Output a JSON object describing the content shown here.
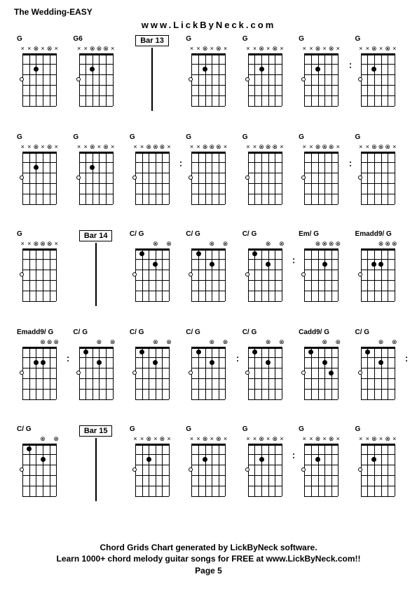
{
  "title": "The Wedding-EASY",
  "subtitle": "www.LickByNeck.com",
  "footer_line1": "Chord Grids Chart generated by LickByNeck software.",
  "footer_line2": "Learn 1000+ chord melody guitar songs for FREE at www.LickByNeck.com!!",
  "footer_page": "Page 5",
  "layout": {
    "rows": 5,
    "cols": 7,
    "diagram_width": 52,
    "diagram_height": 92,
    "num_frets": 5,
    "num_strings": 6
  },
  "chord_types": {
    "G": {
      "header": [
        "x",
        "x",
        "c",
        "x",
        "c",
        "x"
      ],
      "dots": [
        {
          "s": 2,
          "f": 2
        }
      ],
      "opens": [
        {
          "s": 0,
          "f": 3
        }
      ]
    },
    "G6": {
      "header": [
        "x",
        "x",
        "c",
        "c",
        "c",
        "x"
      ],
      "dots": [
        {
          "s": 2,
          "f": 2
        }
      ],
      "opens": [
        {
          "s": 0,
          "f": 3
        }
      ]
    },
    "G_v2": {
      "header": [
        "x",
        "x",
        "c",
        "c",
        "c",
        "x"
      ],
      "dots": [],
      "opens": [
        {
          "s": 0,
          "f": 3
        }
      ]
    },
    "CG": {
      "header": [
        "",
        "",
        "",
        "c",
        "",
        "c"
      ],
      "dots": [
        {
          "s": 1,
          "f": 1
        },
        {
          "s": 3,
          "f": 2
        }
      ],
      "opens": [
        {
          "s": 0,
          "f": 3
        }
      ]
    },
    "EmG": {
      "header": [
        "",
        "",
        "c",
        "c",
        "c",
        "c"
      ],
      "dots": [
        {
          "s": 3,
          "f": 2
        }
      ],
      "opens": [
        {
          "s": 0,
          "f": 3
        }
      ]
    },
    "Emadd9G": {
      "header": [
        "",
        "",
        "",
        "c",
        "c",
        "c"
      ],
      "dots": [
        {
          "s": 2,
          "f": 2
        },
        {
          "s": 3,
          "f": 2
        }
      ],
      "opens": [
        {
          "s": 0,
          "f": 3
        }
      ]
    },
    "Cadd9G": {
      "header": [
        "",
        "",
        "",
        "c",
        "",
        "c"
      ],
      "dots": [
        {
          "s": 1,
          "f": 1
        },
        {
          "s": 3,
          "f": 2
        },
        {
          "s": 4,
          "f": 3
        }
      ],
      "opens": [
        {
          "s": 0,
          "f": 3
        }
      ]
    }
  },
  "grid": [
    [
      {
        "type": "chord",
        "label": "G",
        "chord": "G",
        "rdots": false
      },
      {
        "type": "chord",
        "label": "G6",
        "chord": "G6",
        "rdots": false
      },
      {
        "type": "bar",
        "label": "Bar 13"
      },
      {
        "type": "chord",
        "label": "G",
        "chord": "G",
        "rdots": false
      },
      {
        "type": "chord",
        "label": "G",
        "chord": "G",
        "rdots": false
      },
      {
        "type": "chord",
        "label": "G",
        "chord": "G",
        "rdots": true
      },
      {
        "type": "chord",
        "label": "G",
        "chord": "G",
        "rdots": false
      }
    ],
    [
      {
        "type": "chord",
        "label": "G",
        "chord": "G",
        "rdots": false
      },
      {
        "type": "chord",
        "label": "G",
        "chord": "G",
        "rdots": false
      },
      {
        "type": "chord",
        "label": "G",
        "chord": "G_v2",
        "rdots": true
      },
      {
        "type": "chord",
        "label": "G",
        "chord": "G_v2",
        "rdots": false
      },
      {
        "type": "chord",
        "label": "G",
        "chord": "G_v2",
        "rdots": false
      },
      {
        "type": "chord",
        "label": "G",
        "chord": "G_v2",
        "rdots": true
      },
      {
        "type": "chord",
        "label": "G",
        "chord": "G_v2",
        "rdots": false
      }
    ],
    [
      {
        "type": "chord",
        "label": "G",
        "chord": "G_v2",
        "rdots": false
      },
      {
        "type": "bar",
        "label": "Bar 14"
      },
      {
        "type": "chord",
        "label": "C/ G",
        "chord": "CG",
        "rdots": false
      },
      {
        "type": "chord",
        "label": "C/ G",
        "chord": "CG",
        "rdots": false
      },
      {
        "type": "chord",
        "label": "C/ G",
        "chord": "CG",
        "rdots": true
      },
      {
        "type": "chord",
        "label": "Em/ G",
        "chord": "EmG",
        "rdots": false
      },
      {
        "type": "chord",
        "label": "Emadd9/ G",
        "chord": "Emadd9G",
        "rdots": false
      }
    ],
    [
      {
        "type": "chord",
        "label": "Emadd9/ G",
        "chord": "Emadd9G",
        "rdots": true
      },
      {
        "type": "chord",
        "label": "C/ G",
        "chord": "CG",
        "rdots": false
      },
      {
        "type": "chord",
        "label": "C/ G",
        "chord": "CG",
        "rdots": false
      },
      {
        "type": "chord",
        "label": "C/ G",
        "chord": "CG",
        "rdots": true
      },
      {
        "type": "chord",
        "label": "C/ G",
        "chord": "CG",
        "rdots": false
      },
      {
        "type": "chord",
        "label": "Cadd9/ G",
        "chord": "Cadd9G",
        "rdots": false
      },
      {
        "type": "chord",
        "label": "C/ G",
        "chord": "CG",
        "rdots": true
      }
    ],
    [
      {
        "type": "chord",
        "label": "C/ G",
        "chord": "CG",
        "rdots": false
      },
      {
        "type": "bar",
        "label": "Bar 15"
      },
      {
        "type": "chord",
        "label": "G",
        "chord": "G",
        "rdots": false
      },
      {
        "type": "chord",
        "label": "G",
        "chord": "G",
        "rdots": false
      },
      {
        "type": "chord",
        "label": "G",
        "chord": "G",
        "rdots": true
      },
      {
        "type": "chord",
        "label": "G",
        "chord": "G",
        "rdots": false
      },
      {
        "type": "chord",
        "label": "G",
        "chord": "G",
        "rdots": false
      }
    ]
  ],
  "colors": {
    "bg": "#ffffff",
    "fg": "#000000"
  }
}
